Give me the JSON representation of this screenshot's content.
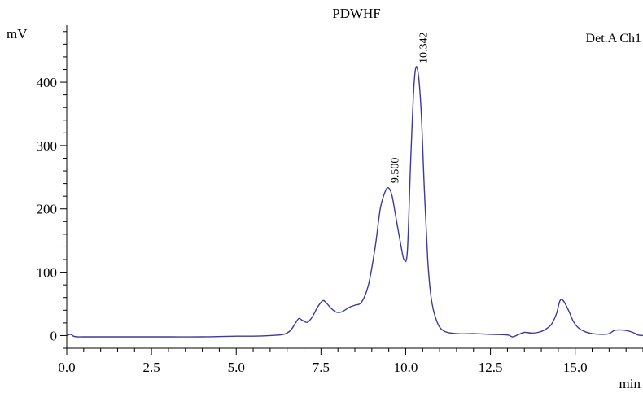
{
  "chart_data": {
    "type": "line",
    "title": "PDWHF",
    "ylabel": "mV",
    "xlabel": "min",
    "channel_label": "Det.A Ch1",
    "xlim": [
      0,
      17
    ],
    "ylim": [
      -20,
      490
    ],
    "x_ticks": [
      0.0,
      2.5,
      5.0,
      7.5,
      10.0,
      12.5,
      15.0
    ],
    "x_tick_labels": [
      "0.0",
      "2.5",
      "5.0",
      "7.5",
      "10.0",
      "12.5",
      "15.0"
    ],
    "y_ticks": [
      0,
      100,
      200,
      300,
      400
    ],
    "y_tick_labels": [
      "0",
      "100",
      "200",
      "300",
      "400"
    ],
    "grid": false,
    "series": [
      {
        "color": "#3a3aa0",
        "x": [
          0.0,
          0.1,
          0.15,
          0.2,
          0.3,
          0.5,
          1.0,
          2.0,
          3.0,
          4.0,
          5.0,
          5.5,
          6.0,
          6.4,
          6.6,
          6.75,
          6.85,
          6.95,
          7.1,
          7.25,
          7.4,
          7.55,
          7.65,
          7.8,
          7.95,
          8.1,
          8.2,
          8.35,
          8.5,
          8.7,
          8.9,
          9.1,
          9.25,
          9.4,
          9.5,
          9.6,
          9.7,
          9.85,
          9.95,
          10.05,
          10.15,
          10.25,
          10.342,
          10.45,
          10.55,
          10.65,
          10.75,
          10.9,
          11.1,
          11.5,
          12.0,
          12.5,
          13.0,
          13.15,
          13.3,
          13.5,
          13.7,
          13.9,
          14.1,
          14.3,
          14.45,
          14.55,
          14.65,
          14.8,
          14.95,
          15.1,
          15.3,
          15.5,
          15.8,
          16.0,
          16.15,
          16.3,
          16.5,
          16.7,
          16.85,
          17.0
        ],
        "y": [
          0,
          2,
          1,
          -1,
          -2,
          -2,
          -2,
          -2,
          -2,
          -2,
          -1,
          -1,
          0,
          2,
          8,
          20,
          27,
          24,
          21,
          30,
          45,
          55,
          52,
          43,
          37,
          37,
          40,
          45,
          48,
          53,
          80,
          140,
          200,
          228,
          233,
          220,
          190,
          145,
          120,
          135,
          280,
          400,
          422,
          360,
          230,
          120,
          60,
          25,
          8,
          3,
          3,
          2,
          1,
          -2,
          1,
          5,
          4,
          5,
          9,
          18,
          35,
          55,
          55,
          40,
          22,
          12,
          6,
          3,
          2,
          3,
          8,
          9,
          8,
          5,
          1,
          0
        ]
      }
    ],
    "peak_annotations": [
      {
        "x": 9.5,
        "y": 233,
        "label": "9.500"
      },
      {
        "x": 10.342,
        "y": 422,
        "label": "10.342"
      }
    ]
  }
}
